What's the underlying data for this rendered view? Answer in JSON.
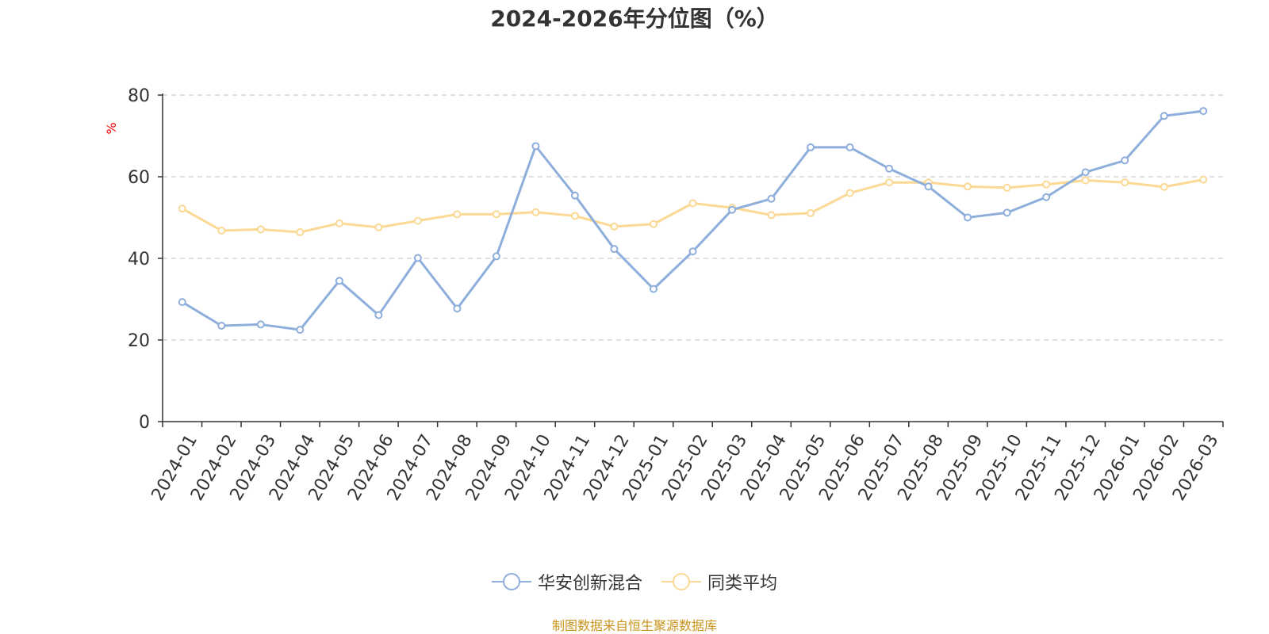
{
  "chart_data": {
    "type": "line",
    "title": "2024-2026年分位图（%）",
    "ylabel": "%",
    "xlabel": "",
    "ylim": [
      0,
      80
    ],
    "yticks": [
      0,
      20,
      40,
      60,
      80
    ],
    "grid": true,
    "legend_placement": "bottom-center",
    "categories": [
      "2024-01",
      "2024-02",
      "2024-03",
      "2024-04",
      "2024-05",
      "2024-06",
      "2024-07",
      "2024-08",
      "2024-09",
      "2024-10",
      "2024-11",
      "2024-12",
      "2025-01",
      "2025-02",
      "2025-03",
      "2025-04",
      "2025-05",
      "2025-06",
      "2025-07",
      "2025-08",
      "2025-09",
      "2025-10",
      "2025-11",
      "2025-12",
      "2026-01",
      "2026-02",
      "2026-03"
    ],
    "series": [
      {
        "name": "华安创新混合",
        "color": "#8eaedb",
        "values": [
          29.3,
          23.5,
          23.8,
          22.5,
          34.5,
          26.1,
          40.1,
          27.7,
          40.5,
          67.5,
          55.4,
          42.3,
          32.5,
          41.7,
          51.9,
          54.6,
          67.2,
          67.2,
          62.0,
          57.6,
          50.0,
          51.2,
          55.0,
          61.1,
          64.0,
          74.9,
          76.1
        ]
      },
      {
        "name": "同类平均",
        "color": "#fbd995",
        "values": [
          52.2,
          46.8,
          47.1,
          46.4,
          48.6,
          47.6,
          49.2,
          50.8,
          50.8,
          51.3,
          50.4,
          47.8,
          48.4,
          53.5,
          52.4,
          50.6,
          51.1,
          56.0,
          58.6,
          58.6,
          57.6,
          57.3,
          58.1,
          59.1,
          58.6,
          57.5,
          59.3
        ]
      }
    ]
  },
  "source_note": "制图数据来自恒生聚源数据库",
  "colors": {
    "axis": "#333333",
    "grid": "#cccccc",
    "ylabel": "#ff0000",
    "source": "#c8941c"
  }
}
